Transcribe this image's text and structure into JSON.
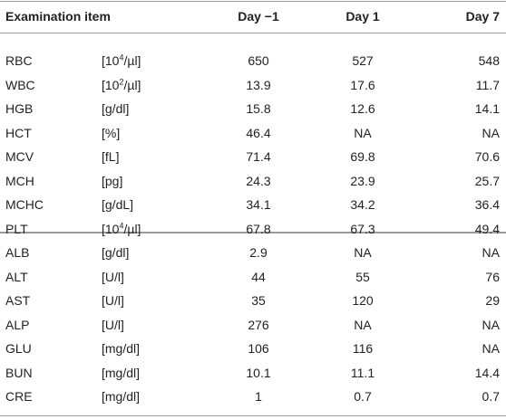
{
  "table": {
    "header": [
      "Examination item",
      "Day −1",
      "Day 1",
      "Day 7"
    ],
    "rows": [
      [
        "RBC",
        {
          "pre": "[10",
          "sup": "4",
          "post": "/µl]"
        },
        "650",
        "527",
        "548"
      ],
      [
        "WBC",
        {
          "pre": "[10",
          "sup": "2",
          "post": "/µl]"
        },
        "13.9",
        "17.6",
        "11.7"
      ],
      [
        "HGB",
        "[g/dl]",
        "15.8",
        "12.6",
        "14.1"
      ],
      [
        "HCT",
        "[%]",
        "46.4",
        "NA",
        "NA"
      ],
      [
        "MCV",
        "[fL]",
        "71.4",
        "69.8",
        "70.6"
      ],
      [
        "MCH",
        "[pg]",
        "24.3",
        "23.9",
        "25.7"
      ],
      [
        "MCHC",
        "[g/dL]",
        "34.1",
        "34.2",
        "36.4"
      ],
      [
        "PLT",
        {
          "pre": "[10",
          "sup": "4",
          "post": "/µl]"
        },
        "67.8",
        "67.3",
        "49.4"
      ],
      [
        "ALB",
        "[g/dl]",
        "2.9",
        "NA",
        "NA"
      ],
      [
        "ALT",
        "[U/l]",
        "44",
        "55",
        "76"
      ],
      [
        "AST",
        "[U/l]",
        "35",
        "120",
        "29"
      ],
      [
        "ALP",
        "[U/l]",
        "276",
        "NA",
        "NA"
      ],
      [
        "GLU",
        "[mg/dl]",
        "106",
        "116",
        "NA"
      ],
      [
        "BUN",
        "[mg/dl]",
        "10.1",
        "11.1",
        "14.4"
      ],
      [
        "CRE",
        "[mg/dl]",
        "1",
        "0.7",
        "0.7"
      ]
    ]
  }
}
